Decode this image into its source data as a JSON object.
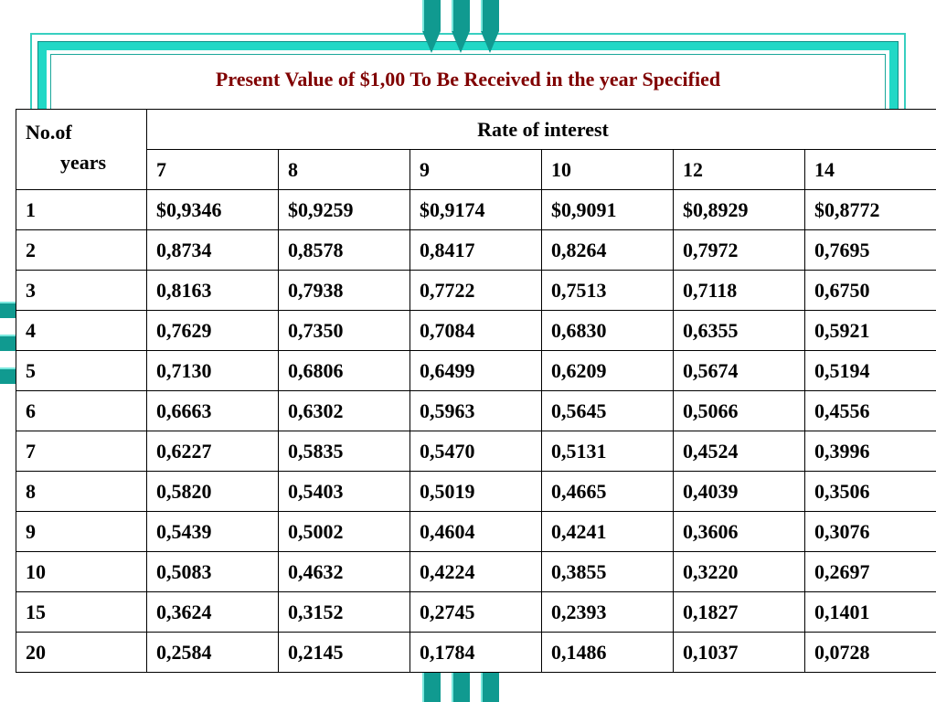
{
  "slide": {
    "title": "Present Value of $1,00 To Be Received in the year Specified"
  },
  "table": {
    "years_header_line1": "No.of",
    "years_header_line2": "years",
    "rate_header": "Rate of interest",
    "rates": [
      "7",
      "8",
      "9",
      "10",
      "12",
      "14"
    ],
    "rows": [
      {
        "year": "1",
        "values": [
          "$0,9346",
          "$0,9259",
          "$0,9174",
          "$0,9091",
          "$0,8929",
          "$0,8772"
        ]
      },
      {
        "year": "2",
        "values": [
          "0,8734",
          "0,8578",
          "0,8417",
          "0,8264",
          "0,7972",
          "0,7695"
        ]
      },
      {
        "year": "3",
        "values": [
          "0,8163",
          "0,7938",
          "0,7722",
          "0,7513",
          "0,7118",
          "0,6750"
        ]
      },
      {
        "year": "4",
        "values": [
          "0,7629",
          "0,7350",
          "0,7084",
          "0,6830",
          "0,6355",
          "0,5921"
        ]
      },
      {
        "year": "5",
        "values": [
          "0,7130",
          "0,6806",
          "0,6499",
          "0,6209",
          "0,5674",
          "0,5194"
        ]
      },
      {
        "year": "6",
        "values": [
          "0,6663",
          "0,6302",
          "0,5963",
          "0,5645",
          "0,5066",
          "0,4556"
        ]
      },
      {
        "year": "7",
        "values": [
          "0,6227",
          "0,5835",
          "0,5470",
          "0,5131",
          "0,4524",
          "0,3996"
        ]
      },
      {
        "year": "8",
        "values": [
          "0,5820",
          "0,5403",
          "0,5019",
          "0,4665",
          "0,4039",
          "0,3506"
        ]
      },
      {
        "year": "9",
        "values": [
          "0,5439",
          "0,5002",
          "0,4604",
          "0,4241",
          "0,3606",
          "0,3076"
        ]
      },
      {
        "year": "10",
        "values": [
          "0,5083",
          "0,4632",
          "0,4224",
          "0,3855",
          "0,3220",
          "0,2697"
        ]
      },
      {
        "year": "15",
        "values": [
          "0,3624",
          "0,3152",
          "0,2745",
          "0,2393",
          "0,1827",
          "0,1401"
        ]
      },
      {
        "year": "20",
        "values": [
          "0,2584",
          "0,2145",
          "0,1784",
          "0,1486",
          "0,1037",
          "0,0728"
        ]
      }
    ]
  },
  "colors": {
    "title": "#800000",
    "frame": "#22d8c6",
    "pennant": "#109a90"
  }
}
